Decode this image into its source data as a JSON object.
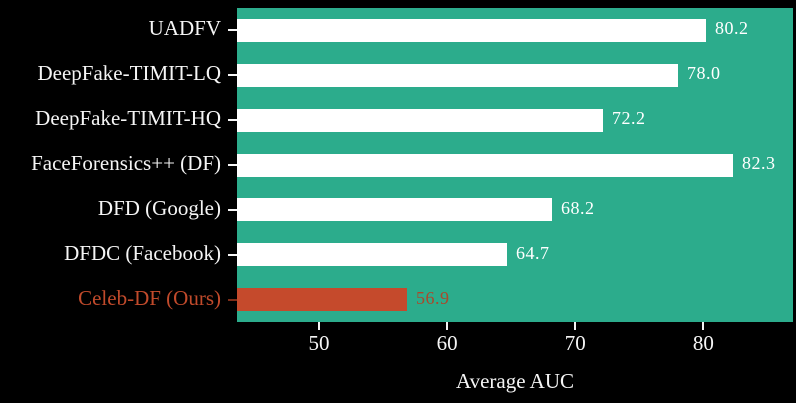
{
  "figure": {
    "background": "#000000",
    "plot_background": "#2cac8c",
    "bar_color": "#ffffff",
    "axis_text_color": "#f5f5f5",
    "highlight_bar_color": "#c54a2c",
    "highlight_label_color": "#c14a2b",
    "highlight_value_color": "#a84a2c",
    "highlight_tick_color": "#7d2d18"
  },
  "chart_data": {
    "type": "bar",
    "orientation": "horizontal",
    "title": "",
    "xlabel": "Average AUC",
    "ylabel": "",
    "categories": [
      "UADFV",
      "DeepFake-TIMIT-LQ",
      "DeepFake-TIMIT-HQ",
      "FaceForensics++ (DF)",
      "DFD (Google)",
      "DFDC (Facebook)",
      "Celeb-DF (Ours)"
    ],
    "values": [
      80.2,
      78.0,
      72.2,
      82.3,
      68.2,
      64.7,
      56.9
    ],
    "value_labels": [
      "80.2",
      "78.0",
      "72.2",
      "82.3",
      "68.2",
      "64.7",
      "56.9"
    ],
    "highlight_index": 6,
    "xticks": [
      50,
      60,
      70,
      80
    ],
    "xlim": [
      43.6,
      87.0
    ],
    "grid": false,
    "legend": false
  }
}
